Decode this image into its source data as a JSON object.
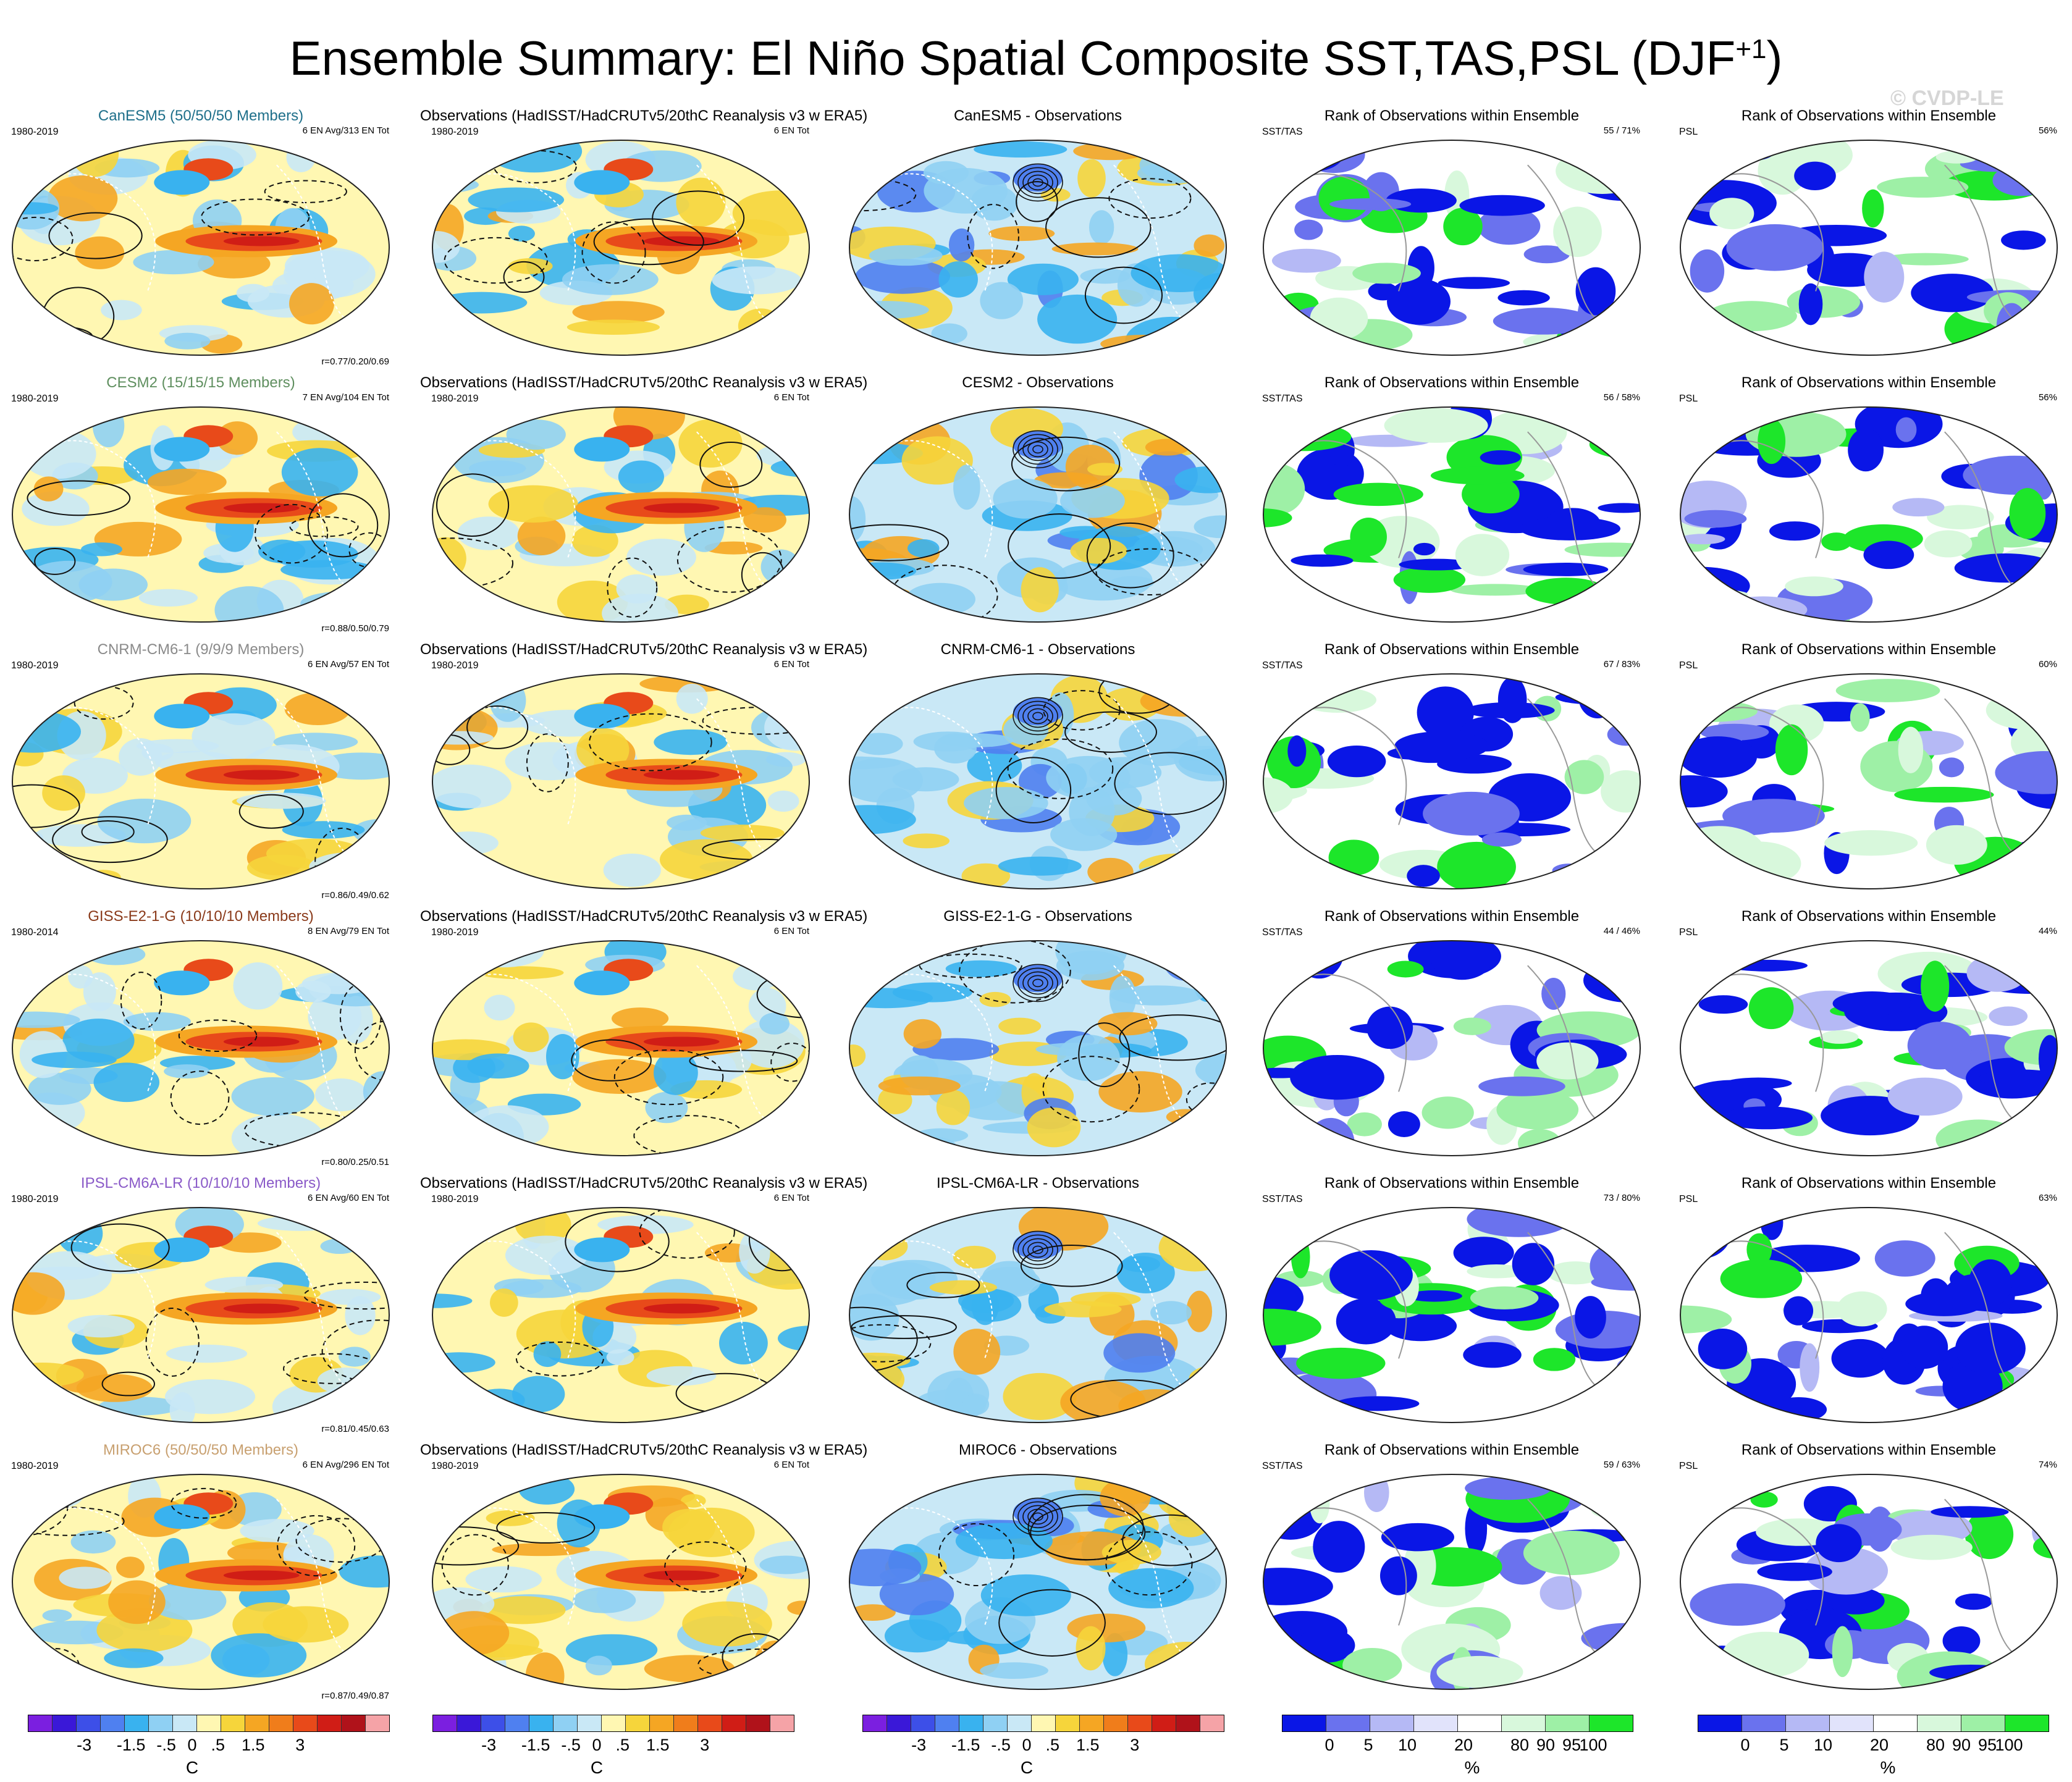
{
  "title": {
    "main": "Ensemble Summary: El Niño Spatial Composite SST,TAS,PSL (DJF",
    "sup": "+1",
    "close": ")"
  },
  "watermark": "© CVDP-LE",
  "colors": {
    "temp_scale": [
      "#7b1fe0",
      "#3a18d8",
      "#3d4fe8",
      "#4f80f0",
      "#39b2ef",
      "#8fd0f3",
      "#c9e8f6",
      "#fff7b2",
      "#f6d53b",
      "#f5a623",
      "#f07d1b",
      "#e84a1a",
      "#d01d16",
      "#b0121a",
      "#f5a3a7"
    ],
    "rank_scale": [
      "#0a16e6",
      "#6a72ee",
      "#b5b9f5",
      "#e1e3fb",
      "#ffffff",
      "#d8f8dc",
      "#9ef0a6",
      "#1de62a"
    ]
  },
  "rows": [
    {
      "model": "CanESM5 (50/50/50 Members)",
      "model_color": "#1e6f8a",
      "years": "1980-2019",
      "ens_info": "6 EN Avg/313 EN Tot",
      "corr": "r=0.77/0.20/0.69",
      "obs_title": "Observations (HadISST/HadCRUTv5/20thC Reanalysis v3 w ERA5)",
      "obs_years": "1980-2019",
      "obs_info": "6 EN Tot",
      "diff_title": "CanESM5 - Observations",
      "rank_title": "Rank of Observations within Ensemble",
      "rank_sst_label": "SST/TAS",
      "rank_sst_pct": "55 /  71%",
      "rank_psl_label": "PSL",
      "rank_psl_pct": "56%"
    },
    {
      "model": "CESM2 (15/15/15 Members)",
      "model_color": "#5f8f5f",
      "years": "1980-2019",
      "ens_info": "7 EN Avg/104 EN Tot",
      "corr": "r=0.88/0.50/0.79",
      "obs_title": "Observations (HadISST/HadCRUTv5/20thC Reanalysis v3 w ERA5)",
      "obs_years": "1980-2019",
      "obs_info": "6 EN Tot",
      "diff_title": "CESM2 - Observations",
      "rank_title": "Rank of Observations within Ensemble",
      "rank_sst_label": "SST/TAS",
      "rank_sst_pct": "56 /  58%",
      "rank_psl_label": "PSL",
      "rank_psl_pct": "56%"
    },
    {
      "model": "CNRM-CM6-1 (9/9/9 Members)",
      "model_color": "#8a8a8a",
      "years": "1980-2019",
      "ens_info": "6 EN Avg/57 EN Tot",
      "corr": "r=0.86/0.49/0.62",
      "obs_title": "Observations (HadISST/HadCRUTv5/20thC Reanalysis v3 w ERA5)",
      "obs_years": "1980-2019",
      "obs_info": "6 EN Tot",
      "diff_title": "CNRM-CM6-1 - Observations",
      "rank_title": "Rank of Observations within Ensemble",
      "rank_sst_label": "SST/TAS",
      "rank_sst_pct": "67 /  83%",
      "rank_psl_label": "PSL",
      "rank_psl_pct": "60%"
    },
    {
      "model": "GISS-E2-1-G (10/10/10 Members)",
      "model_color": "#8a3a1a",
      "years": "1980-2014",
      "ens_info": "8 EN Avg/79 EN Tot",
      "corr": "r=0.80/0.25/0.51",
      "obs_title": "Observations (HadISST/HadCRUTv5/20thC Reanalysis v3 w ERA5)",
      "obs_years": "1980-2019",
      "obs_info": "6 EN Tot",
      "diff_title": "GISS-E2-1-G - Observations",
      "rank_title": "Rank of Observations within Ensemble",
      "rank_sst_label": "SST/TAS",
      "rank_sst_pct": "44 /  46%",
      "rank_psl_label": "PSL",
      "rank_psl_pct": "44%"
    },
    {
      "model": "IPSL-CM6A-LR (10/10/10 Members)",
      "model_color": "#8a5ac8",
      "years": "1980-2019",
      "ens_info": "6 EN Avg/60 EN Tot",
      "corr": "r=0.81/0.45/0.63",
      "obs_title": "Observations (HadISST/HadCRUTv5/20thC Reanalysis v3 w ERA5)",
      "obs_years": "1980-2019",
      "obs_info": "6 EN Tot",
      "diff_title": "IPSL-CM6A-LR - Observations",
      "rank_title": "Rank of Observations within Ensemble",
      "rank_sst_label": "SST/TAS",
      "rank_sst_pct": "73 /  80%",
      "rank_psl_label": "PSL",
      "rank_psl_pct": "63%"
    },
    {
      "model": "MIROC6 (50/50/50 Members)",
      "model_color": "#c8a070",
      "years": "1980-2019",
      "ens_info": "6 EN Avg/296 EN Tot",
      "corr": "r=0.87/0.49/0.87",
      "obs_title": "Observations (HadISST/HadCRUTv5/20thC Reanalysis v3 w ERA5)",
      "obs_years": "1980-2019",
      "obs_info": "6 EN Tot",
      "diff_title": "MIROC6 - Observations",
      "rank_title": "Rank of Observations within Ensemble",
      "rank_sst_label": "SST/TAS",
      "rank_sst_pct": "59 /  63%",
      "rank_psl_label": "PSL",
      "rank_psl_pct": "74%"
    }
  ],
  "colorbars": {
    "temp_ticks": [
      "-3",
      "-1.5",
      "-.5",
      "0",
      ".5",
      "1.5",
      "3"
    ],
    "temp_unit": "C",
    "rank_ticks": [
      "0",
      "5",
      "10",
      "20",
      "80",
      "90",
      "95",
      "100"
    ],
    "rank_unit": "%"
  }
}
